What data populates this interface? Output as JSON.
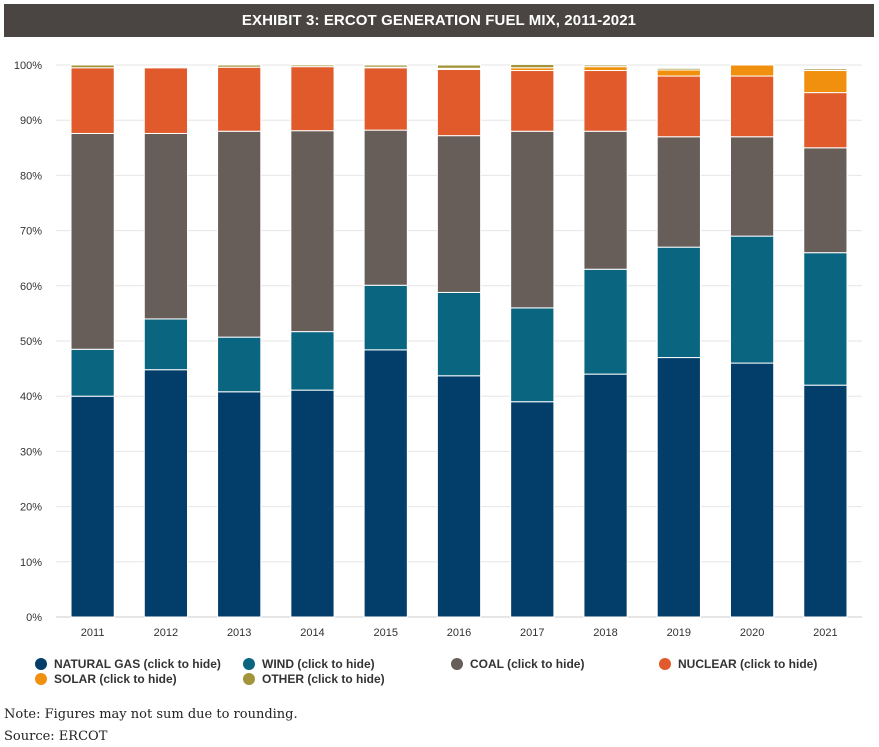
{
  "title": "EXHIBIT 3: ERCOT GENERATION FUEL MIX, 2011-2021",
  "chart_data": {
    "type": "bar",
    "stacked": true,
    "title": "EXHIBIT 3: ERCOT GENERATION FUEL MIX, 2011-2021",
    "categories": [
      "2011",
      "2012",
      "2013",
      "2014",
      "2015",
      "2016",
      "2017",
      "2018",
      "2019",
      "2020",
      "2021"
    ],
    "y_ticks": [
      "0%",
      "10%",
      "20%",
      "30%",
      "40%",
      "50%",
      "60%",
      "70%",
      "80%",
      "90%",
      "100%"
    ],
    "ylim": [
      0,
      100
    ],
    "grid": true,
    "legend_position": "bottom",
    "series": [
      {
        "name": "NATURAL GAS",
        "color": "#033e6b",
        "values": [
          40,
          44.8,
          40.8,
          41.1,
          48.4,
          43.7,
          39,
          44,
          47,
          46,
          42
        ]
      },
      {
        "name": "WIND",
        "color": "#0a6680",
        "values": [
          8.5,
          9.2,
          9.9,
          10.6,
          11.7,
          15.1,
          17,
          19,
          20,
          23,
          24
        ]
      },
      {
        "name": "COAL",
        "color": "#675e59",
        "values": [
          39.1,
          33.6,
          37.3,
          36.4,
          28.1,
          28.4,
          32,
          25,
          20,
          18,
          19
        ]
      },
      {
        "name": "NUCLEAR",
        "color": "#e05a2b",
        "values": [
          11.9,
          11.9,
          11.6,
          11.6,
          11.3,
          12,
          11,
          11,
          11,
          11,
          10
        ]
      },
      {
        "name": "SOLAR",
        "color": "#f0900e",
        "values": [
          0,
          0,
          0,
          0,
          0.1,
          0.2,
          0.5,
          0.7,
          1.1,
          2,
          4
        ]
      },
      {
        "name": "OTHER",
        "color": "#a3933a",
        "values": [
          0.5,
          0.1,
          0.4,
          0.3,
          0.4,
          0.6,
          0.6,
          0.3,
          0.3,
          0,
          0.3
        ]
      }
    ]
  },
  "legend": [
    {
      "label": "NATURAL GAS (click to hide)",
      "color": "#033e6b"
    },
    {
      "label": "WIND (click to hide)",
      "color": "#0a6680"
    },
    {
      "label": "COAL (click to hide)",
      "color": "#675e59"
    },
    {
      "label": "NUCLEAR (click to hide)",
      "color": "#e05a2b"
    },
    {
      "label": "SOLAR (click to hide)",
      "color": "#f0900e"
    },
    {
      "label": "OTHER (click to hide)",
      "color": "#a3933a"
    }
  ],
  "notes": {
    "note": "Note: Figures may not sum due to rounding.",
    "source": "Source: ERCOT"
  }
}
